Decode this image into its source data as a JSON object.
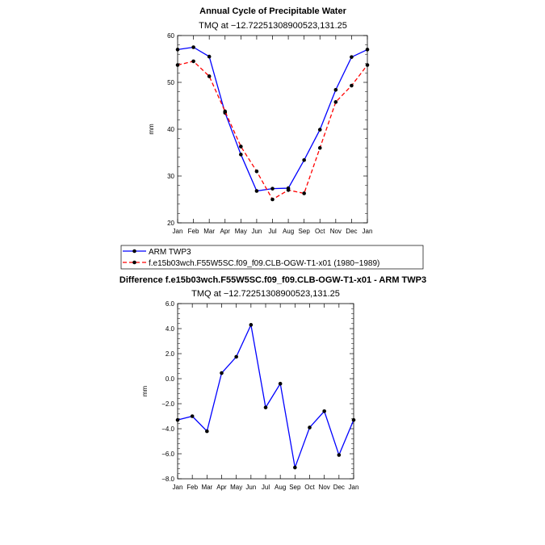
{
  "chart_data": [
    {
      "type": "line",
      "title": "Annual Cycle of Precipitable Water",
      "subtitle": "TMQ at −12.72251308900523,131.25",
      "xlabel": "",
      "ylabel": "mm",
      "categories": [
        "Jan",
        "Feb",
        "Mar",
        "Apr",
        "May",
        "Jun",
        "Jul",
        "Aug",
        "Sep",
        "Oct",
        "Nov",
        "Dec",
        "Jan"
      ],
      "ylim": [
        20,
        60
      ],
      "yticks": [
        "20",
        "30",
        "40",
        "50",
        "60"
      ],
      "legend_position": "below",
      "series": [
        {
          "name": "ARM TWP3",
          "color": "#0000ff",
          "dash": "solid",
          "values": [
            57.0,
            57.5,
            55.5,
            43.5,
            34.6,
            26.8,
            27.3,
            27.4,
            33.4,
            39.9,
            48.4,
            55.4,
            57.0
          ]
        },
        {
          "name": "f.e15b03wch.F55W5SC.f09_f09.CLB-OGW-T1-x01 (1980−1989)",
          "color": "#ff0000",
          "dash": "dashed",
          "values": [
            53.7,
            54.5,
            51.3,
            43.8,
            36.3,
            31.0,
            25.0,
            27.0,
            26.3,
            36.0,
            45.8,
            49.3,
            53.7
          ]
        }
      ]
    },
    {
      "type": "line",
      "title": "Difference f.e15b03wch.F55W5SC.f09_f09.CLB-OGW-T1-x01 - ARM TWP3",
      "subtitle": "TMQ at −12.72251308900523,131.25",
      "xlabel": "",
      "ylabel": "mm",
      "categories": [
        "Jan",
        "Feb",
        "Mar",
        "Apr",
        "May",
        "Jun",
        "Jul",
        "Aug",
        "Sep",
        "Oct",
        "Nov",
        "Dec",
        "Jan"
      ],
      "ylim": [
        -8,
        6
      ],
      "yticks": [
        "−8.0",
        "−6.0",
        "−4.0",
        "−2.0",
        "0.0",
        "2.0",
        "4.0",
        "6.0"
      ],
      "series": [
        {
          "name": "Difference",
          "color": "#0000ff",
          "dash": "solid",
          "values": [
            -3.3,
            -3.0,
            -4.2,
            0.45,
            1.75,
            4.3,
            -2.3,
            -0.4,
            -7.1,
            -3.9,
            -2.6,
            -6.1,
            -3.3
          ]
        }
      ]
    }
  ]
}
